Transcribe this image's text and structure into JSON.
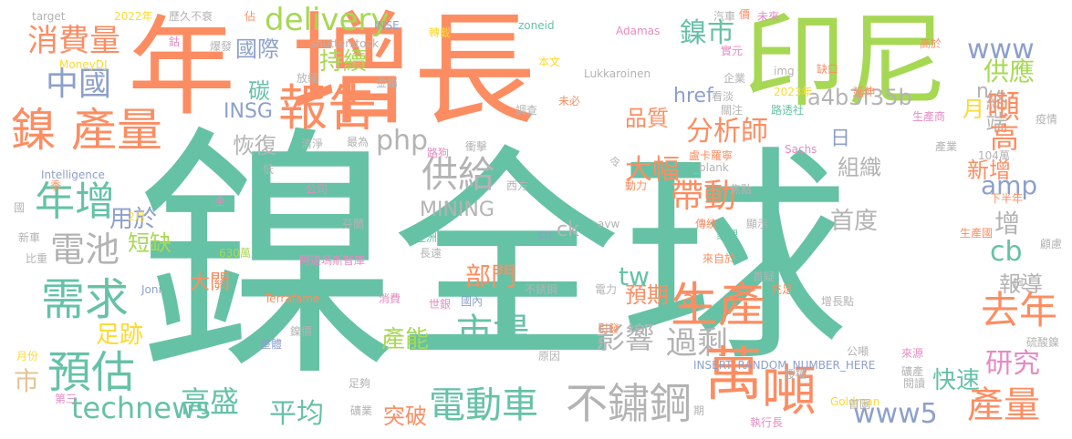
{
  "colors": {
    "teal": "#66c2a5",
    "orange": "#fc8d62",
    "periwinkle": "#8da0cb",
    "pink": "#e78ac3",
    "lime": "#a6d854",
    "yellow": "#ffd92f",
    "tan": "#e5c494",
    "gray": "#b3b3b3"
  },
  "words": [
    {
      "text": "鎳",
      "color": "#66c2a5"
    },
    {
      "text": "全球",
      "color": "#66c2a5"
    },
    {
      "text": "年",
      "color": "#fc8d62"
    },
    {
      "text": "增長",
      "color": "#fc8d62"
    },
    {
      "text": "印尼",
      "color": "#a6d854"
    },
    {
      "text": "鎳 產量",
      "color": "#fc8d62"
    },
    {
      "text": "報告",
      "color": "#fc8d62"
    },
    {
      "text": "年增",
      "color": "#66c2a5"
    },
    {
      "text": "電池",
      "color": "#b3b3b3"
    },
    {
      "text": "需求",
      "color": "#66c2a5"
    },
    {
      "text": "預估",
      "color": "#66c2a5"
    },
    {
      "text": "消費量",
      "color": "#fc8d62"
    },
    {
      "text": "中國",
      "color": "#8da0cb"
    },
    {
      "text": "technews",
      "color": "#66c2a5"
    },
    {
      "text": "市",
      "color": "#e5c494"
    },
    {
      "text": "足跡",
      "color": "#ffd92f"
    },
    {
      "text": "短缺",
      "color": "#a6d854"
    },
    {
      "text": "用於",
      "color": "#8da0cb"
    },
    {
      "text": "大關",
      "color": "#fc8d62"
    },
    {
      "text": "delivery",
      "color": "#a6d854"
    },
    {
      "text": "國際",
      "color": "#8da0cb"
    },
    {
      "text": "碳",
      "color": "#66c2a5"
    },
    {
      "text": "持續",
      "color": "#a6d854"
    },
    {
      "text": "恢復",
      "color": "#b3b3b3"
    },
    {
      "text": "INSG",
      "color": "#8da0cb"
    },
    {
      "text": "php",
      "color": "#b3b3b3"
    },
    {
      "text": "供給",
      "color": "#b3b3b3"
    },
    {
      "text": "MINING",
      "color": "#b3b3b3"
    },
    {
      "text": "ck",
      "color": "#b3b3b3"
    },
    {
      "text": "tw",
      "color": "#66c2a5"
    },
    {
      "text": "部門",
      "color": "#fc8d62"
    },
    {
      "text": "市場",
      "color": "#66c2a5"
    },
    {
      "text": "產能",
      "color": "#a6d854"
    },
    {
      "text": "電動車",
      "color": "#66c2a5"
    },
    {
      "text": "不鏽鋼",
      "color": "#b3b3b3"
    },
    {
      "text": "高盛",
      "color": "#66c2a5"
    },
    {
      "text": "平均",
      "color": "#66c2a5"
    },
    {
      "text": "突破",
      "color": "#fc8d62"
    },
    {
      "text": "a4b3f35b",
      "color": "#b3b3b3"
    },
    {
      "text": "鎳市",
      "color": "#66c2a5"
    },
    {
      "text": "href",
      "color": "#8da0cb"
    },
    {
      "text": "品質",
      "color": "#fc8d62"
    },
    {
      "text": "分析師",
      "color": "#fc8d62"
    },
    {
      "text": "大幅",
      "color": "#fc8d62"
    },
    {
      "text": "帶動",
      "color": "#fc8d62"
    },
    {
      "text": "預期",
      "color": "#fc8d62"
    },
    {
      "text": "影響",
      "color": "#b3b3b3"
    },
    {
      "text": "過剩",
      "color": "#b3b3b3"
    },
    {
      "text": "a",
      "color": "#fc8d62"
    },
    {
      "text": "日",
      "color": "#8da0cb"
    },
    {
      "text": "組織",
      "color": "#b3b3b3"
    },
    {
      "text": "首度",
      "color": "#b3b3b3"
    },
    {
      "text": "生產",
      "color": "#fc8d62"
    },
    {
      "text": "萬",
      "color": "#fc8d62"
    },
    {
      "text": "噸",
      "color": "#fc8d62"
    },
    {
      "text": "www5",
      "color": "#8da0cb"
    },
    {
      "text": "終端",
      "color": "#b3b3b3"
    },
    {
      "text": "www",
      "color": "#8da0cb"
    },
    {
      "text": "供應",
      "color": "#a6d854"
    },
    {
      "text": "噸",
      "color": "#fc8d62"
    },
    {
      "text": "n",
      "color": "#b3b3b3"
    },
    {
      "text": "月",
      "color": "#ffd92f"
    },
    {
      "text": "高",
      "color": "#fc8d62"
    },
    {
      "text": "amp",
      "color": "#8da0cb"
    },
    {
      "text": "新增",
      "color": "#fc8d62"
    },
    {
      "text": "增",
      "color": "#b3b3b3"
    },
    {
      "text": "cb",
      "color": "#66c2a5"
    },
    {
      "text": "報導",
      "color": "#b3b3b3"
    },
    {
      "text": "去年",
      "color": "#fc8d62"
    },
    {
      "text": "研究",
      "color": "#e78ac3"
    },
    {
      "text": "快速",
      "color": "#66c2a5"
    },
    {
      "text": "產量",
      "color": "#fc8d62"
    },
    {
      "text": "target",
      "color": "#b3b3b3"
    },
    {
      "text": "2022年",
      "color": "#ffd92f"
    },
    {
      "text": "歷久不衰",
      "color": "#b3b3b3"
    },
    {
      "text": "佔",
      "color": "#fc8d62"
    },
    {
      "text": "INSE",
      "color": "#8da0cb"
    },
    {
      "text": "轉載",
      "color": "#ffd92f"
    },
    {
      "text": "zoneid",
      "color": "#66c2a5"
    },
    {
      "text": "Adamas",
      "color": "#e78ac3"
    },
    {
      "text": "汽車",
      "color": "#b3b3b3"
    },
    {
      "text": "價",
      "color": "#fc8d62"
    },
    {
      "text": "未來",
      "color": "#e78ac3"
    },
    {
      "text": "shutterstock",
      "color": "#b3b3b3"
    },
    {
      "text": "鈷",
      "color": "#e78ac3"
    },
    {
      "text": "爆發",
      "color": "#b3b3b3"
    },
    {
      "text": "MoneyDJ",
      "color": "#ffd92f"
    },
    {
      "text": "放緩",
      "color": "#b3b3b3"
    },
    {
      "text": "本文",
      "color": "#ffd92f"
    },
    {
      "text": "Lukkaroinen",
      "color": "#b3b3b3"
    },
    {
      "text": "img",
      "color": "#b3b3b3"
    },
    {
      "text": "高於",
      "color": "#fc8d62"
    },
    {
      "text": "缺口",
      "color": "#fc8d62"
    },
    {
      "text": "實元",
      "color": "#e78ac3"
    },
    {
      "text": "企業",
      "color": "#b3b3b3"
    },
    {
      "text": "金屬",
      "color": "#b3b3b3"
    },
    {
      "text": "2023年",
      "color": "#ffd92f"
    },
    {
      "text": "延伸",
      "color": "#fc8d62"
    },
    {
      "text": "看淡",
      "color": "#b3b3b3"
    },
    {
      "text": "調查",
      "color": "#b3b3b3"
    },
    {
      "text": "未必",
      "color": "#fc8d62"
    },
    {
      "text": "關注",
      "color": "#b3b3b3"
    },
    {
      "text": "路透社",
      "color": "#66c2a5"
    },
    {
      "text": "生產商",
      "color": "#e78ac3"
    },
    {
      "text": "疫情",
      "color": "#b3b3b3"
    },
    {
      "text": "清淨",
      "color": "#b3b3b3"
    },
    {
      "text": "最為",
      "color": "#b3b3b3"
    },
    {
      "text": "路狗",
      "color": "#e78ac3"
    },
    {
      "text": "衝擊",
      "color": "#b3b3b3"
    },
    {
      "text": "盧卡羅寧",
      "color": "#fc8d62"
    },
    {
      "text": "Sachs",
      "color": "#e78ac3"
    },
    {
      "text": "產業",
      "color": "#b3b3b3"
    },
    {
      "text": "104萬",
      "color": "#b3b3b3"
    },
    {
      "text": "Intelligence",
      "color": "#8da0cb"
    },
    {
      "text": "低",
      "color": "#b3b3b3"
    },
    {
      "text": "令",
      "color": "#b3b3b3"
    },
    {
      "text": "_blank",
      "color": "#b3b3b3"
    },
    {
      "text": "季",
      "color": "#fc8d62"
    },
    {
      "text": "公司",
      "color": "#e78ac3"
    },
    {
      "text": "西方",
      "color": "#b3b3b3"
    },
    {
      "text": "動力",
      "color": "#fc8d62"
    },
    {
      "text": "焦點",
      "color": "#b3b3b3"
    },
    {
      "text": "全",
      "color": "#e78ac3"
    },
    {
      "text": "下半年",
      "color": "#fc8d62"
    },
    {
      "text": "國",
      "color": "#b3b3b3"
    },
    {
      "text": "2月",
      "color": "#ffd92f"
    },
    {
      "text": "芬蘭",
      "color": "#b3b3b3"
    },
    {
      "text": "avw",
      "color": "#b3b3b3"
    },
    {
      "text": "傳統",
      "color": "#fc8d62"
    },
    {
      "text": "顯示",
      "color": "#b3b3b3"
    },
    {
      "text": "新車",
      "color": "#b3b3b3"
    },
    {
      "text": "亞洲",
      "color": "#66c2a5"
    },
    {
      "text": "src",
      "color": "#8da0cb"
    },
    {
      "text": "家裡",
      "color": "#66c2a5"
    },
    {
      "text": "生產國",
      "color": "#fc8d62"
    },
    {
      "text": "630萬",
      "color": "#a6d854"
    },
    {
      "text": "長遠",
      "color": "#b3b3b3"
    },
    {
      "text": "來自於",
      "color": "#fc8d62"
    },
    {
      "text": "顧慮",
      "color": "#b3b3b3"
    },
    {
      "text": "比重",
      "color": "#b3b3b3"
    },
    {
      "text": "阿達瑪斯智庫",
      "color": "#e78ac3"
    },
    {
      "text": "首疑",
      "color": "#b3b3b3"
    },
    {
      "text": "Joni",
      "color": "#8da0cb"
    },
    {
      "text": "電力",
      "color": "#b3b3b3"
    },
    {
      "text": "充足",
      "color": "#fc8d62"
    },
    {
      "text": "Terrafame",
      "color": "#fc8d62"
    },
    {
      "text": "不銹鋼",
      "color": "#b3b3b3"
    },
    {
      "text": "國內",
      "color": "#8da0cb"
    },
    {
      "text": "增長點",
      "color": "#b3b3b3"
    },
    {
      "text": "鋼",
      "color": "#b3b3b3"
    },
    {
      "text": "世銀",
      "color": "#e78ac3"
    },
    {
      "text": "消費",
      "color": "#e78ac3"
    },
    {
      "text": "鎳價",
      "color": "#b3b3b3"
    },
    {
      "text": "引發",
      "color": "#fc8d62"
    },
    {
      "text": "整體",
      "color": "#8da0cb"
    },
    {
      "text": "原因",
      "color": "#b3b3b3"
    },
    {
      "text": "公噸",
      "color": "#b3b3b3"
    },
    {
      "text": "月份",
      "color": "#ffd92f"
    },
    {
      "text": "硫酸鎳",
      "color": "#b3b3b3"
    },
    {
      "text": "來源",
      "color": "#e78ac3"
    },
    {
      "text": "礦產",
      "color": "#b3b3b3"
    },
    {
      "text": "INSERT_RANDOM_NUMBER_HERE",
      "color": "#8da0cb"
    },
    {
      "text": "第三",
      "color": "#e78ac3"
    },
    {
      "text": "足夠",
      "color": "#b3b3b3"
    },
    {
      "text": "授權",
      "color": "#b3b3b3"
    },
    {
      "text": "閱讀",
      "color": "#b3b3b3"
    },
    {
      "text": "礦業",
      "color": "#b3b3b3"
    },
    {
      "text": "Goldman",
      "color": "#ffd92f"
    },
    {
      "text": "首圖",
      "color": "#b3b3b3"
    },
    {
      "text": "執行長",
      "color": "#e78ac3"
    },
    {
      "text": "期",
      "color": "#b3b3b3"
    }
  ]
}
